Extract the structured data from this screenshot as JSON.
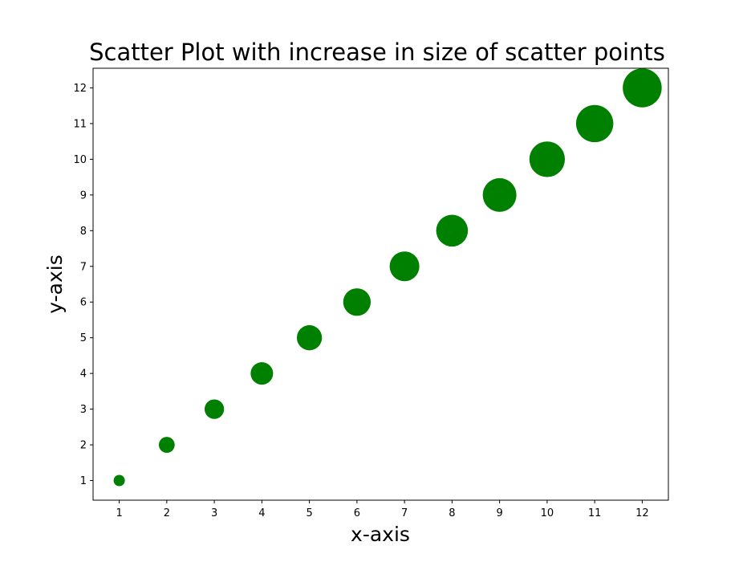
{
  "chart_data": {
    "type": "scatter",
    "title": "Scatter Plot with increase in size of scatter points",
    "xlabel": "x-axis",
    "ylabel": "y-axis",
    "x": [
      1,
      2,
      3,
      4,
      5,
      6,
      7,
      8,
      9,
      10,
      11,
      12
    ],
    "y": [
      1,
      2,
      3,
      4,
      5,
      6,
      7,
      8,
      9,
      10,
      11,
      12
    ],
    "sizes": [
      100,
      200,
      300,
      400,
      500,
      600,
      700,
      800,
      900,
      1000,
      1100,
      1200
    ],
    "color": "#008000",
    "xlim": [
      0.45,
      12.55
    ],
    "ylim": [
      0.45,
      12.55
    ],
    "xticks": [
      1,
      2,
      3,
      4,
      5,
      6,
      7,
      8,
      9,
      10,
      11,
      12
    ],
    "yticks": [
      1,
      2,
      3,
      4,
      5,
      6,
      7,
      8,
      9,
      10,
      11,
      12
    ],
    "grid": false,
    "legend": "none"
  }
}
